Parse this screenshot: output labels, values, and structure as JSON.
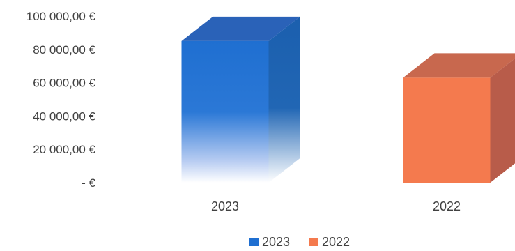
{
  "chart_data": {
    "type": "bar",
    "style": "3d-column",
    "categories": [
      "2023",
      "2022"
    ],
    "series": [
      {
        "name": "2023",
        "category": "2023",
        "value": 85000,
        "color": "#1f6fd1",
        "side_color": "#1a5fae",
        "top_color": "#2a62b8"
      },
      {
        "name": "2022",
        "category": "2022",
        "value": 63000,
        "color": "#f47a4e",
        "side_color": "#b85c4a",
        "top_color": "#c8684e"
      }
    ],
    "values": [
      85000,
      63000
    ],
    "ylim": [
      0,
      100000
    ],
    "yticks": [
      {
        "value": 100000,
        "label": "100 000,00 €"
      },
      {
        "value": 80000,
        "label": "80 000,00 €"
      },
      {
        "value": 60000,
        "label": "60 000,00 €"
      },
      {
        "value": 40000,
        "label": "40 000,00 €"
      },
      {
        "value": 20000,
        "label": "20 000,00 €"
      },
      {
        "value": 0,
        "label": "-   €"
      }
    ],
    "legend": {
      "position": "bottom",
      "entries": [
        "2023",
        "2022"
      ]
    },
    "grid": false
  }
}
